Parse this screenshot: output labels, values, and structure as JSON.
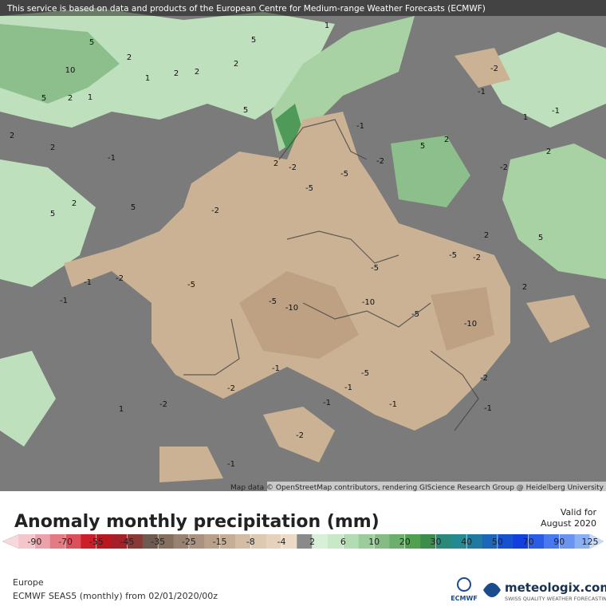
{
  "header": {
    "notice": "This service is based on data and products of the European Centre for Medium-range Weather Forecasts (ECMWF)"
  },
  "map": {
    "attribution": "Map data © OpenStreetMap contributors, rendering GIScience Research Group @ Heidelberg University",
    "contour_labels": [
      "1",
      "5",
      "5",
      "2",
      "1",
      "2",
      "2",
      "2",
      "10",
      "5",
      "2",
      "1",
      "5",
      "2",
      "-1",
      "2",
      "2",
      "-2",
      "-5",
      "-5",
      "-1",
      "-2",
      "2",
      "5",
      "5",
      "-2",
      "-5",
      "-5",
      "-10",
      "-10",
      "-5",
      "-5",
      "-10",
      "-5",
      "-2",
      "2",
      "-1",
      "-1",
      "-2",
      "-2",
      "-1",
      "-5",
      "-1",
      "-2",
      "1",
      "-1",
      "-1",
      "-2",
      "-1",
      "-2",
      "-1",
      "2",
      "5",
      "2",
      "-1",
      "1",
      "-2",
      "-1",
      "5",
      "-2",
      "2"
    ]
  },
  "legend": {
    "title": "Anomaly monthly precipitation (mm)",
    "valid_label": "Valid for",
    "valid_date": "August 2020",
    "tick_labels": [
      "-90",
      "-70",
      "-55",
      "-45",
      "-35",
      "-25",
      "-15",
      "-8",
      "-4",
      "2",
      "6",
      "10",
      "20",
      "30",
      "40",
      "50",
      "70",
      "90",
      "125"
    ],
    "arrow_colors": [
      "#f8d8dc",
      "#c6dcf8"
    ],
    "colors": [
      "#f4c6cc",
      "#eca2aa",
      "#e47a84",
      "#dc505c",
      "#cc1f2a",
      "#b81820",
      "#a4212a",
      "#8a3a36",
      "#6e5a4e",
      "#857060",
      "#9a8270",
      "#ab9280",
      "#b9a08a",
      "#c6ae96",
      "#d2bca4",
      "#ddc8b2",
      "#e6d2bc",
      "#ecdac6",
      "#8a8a8a",
      "#d8f0d8",
      "#c8e8c8",
      "#b4dcb4",
      "#9ccc9c",
      "#84bc84",
      "#6cae6c",
      "#50a050",
      "#3c8c4c",
      "#2a8a7a",
      "#228a90",
      "#1e7aa0",
      "#1a66b8",
      "#1652d0",
      "#1240e0",
      "#2a5ce8",
      "#4a78ee",
      "#6a94f2",
      "#8ab0f4"
    ]
  },
  "footer": {
    "region": "Europe",
    "model": "ECMWF SEAS5 (monthly)  from  02/01/2020/00z",
    "ecmwf_logo": "ECMWF",
    "brand": "meteologix.com",
    "brand_tagline": "SWISS QUALITY WEATHER FORECASTING"
  }
}
